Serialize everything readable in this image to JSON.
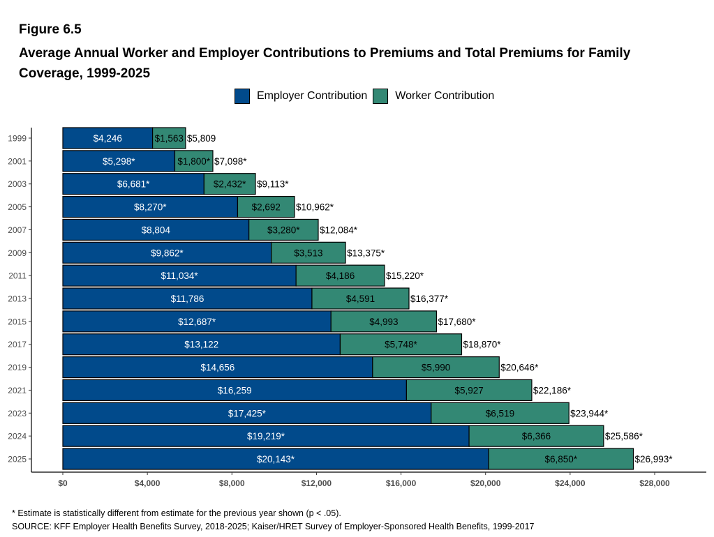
{
  "figure_label": "Figure 6.5",
  "chart_data": {
    "type": "bar",
    "orientation": "horizontal",
    "stacked": true,
    "title": "Average Annual Worker and Employer Contributions to Premiums and Total Premiums for Family Coverage, 1999-2025",
    "categories": [
      "1999",
      "2001",
      "2003",
      "2005",
      "2007",
      "2009",
      "2011",
      "2013",
      "2015",
      "2017",
      "2019",
      "2021",
      "2023",
      "2024",
      "2025"
    ],
    "series": [
      {
        "name": "Employer Contribution",
        "color": "#014A8B",
        "values": [
          4246,
          5298,
          6681,
          8270,
          8804,
          9862,
          11034,
          11786,
          12687,
          13122,
          14656,
          16259,
          17425,
          19219,
          20143
        ],
        "labels": [
          "$4,246",
          "$5,298*",
          "$6,681*",
          "$8,270*",
          "$8,804",
          "$9,862*",
          "$11,034*",
          "$11,786",
          "$12,687*",
          "$13,122",
          "$14,656",
          "$16,259",
          "$17,425*",
          "$19,219*",
          "$20,143*"
        ]
      },
      {
        "name": "Worker Contribution",
        "color": "#338874",
        "values": [
          1563,
          1800,
          2432,
          2692,
          3280,
          3513,
          4186,
          4591,
          4993,
          5748,
          5990,
          5927,
          6519,
          6366,
          6850
        ],
        "labels": [
          "$1,563",
          "$1,800*",
          "$2,432*",
          "$2,692",
          "$3,280*",
          "$3,513",
          "$4,186",
          "$4,591",
          "$4,993",
          "$5,748*",
          "$5,990",
          "$5,927",
          "$6,519",
          "$6,366",
          "$6,850*"
        ]
      }
    ],
    "totals": {
      "values": [
        5809,
        7098,
        9113,
        10962,
        12084,
        13375,
        15220,
        16377,
        17680,
        18870,
        20646,
        22186,
        23944,
        25586,
        26993
      ],
      "labels": [
        "$5,809",
        "$7,098*",
        "$9,113*",
        "$10,962*",
        "$12,084*",
        "$13,375*",
        "$15,220*",
        "$16,377*",
        "$17,680*",
        "$18,870*",
        "$20,646*",
        "$22,186*",
        "$23,944*",
        "$25,586*",
        "$26,993*"
      ]
    },
    "xlim": [
      0,
      30000
    ],
    "xticks": [
      0,
      4000,
      8000,
      12000,
      16000,
      20000,
      24000,
      28000
    ],
    "xtick_labels": [
      "$0",
      "$4,000",
      "$8,000",
      "$12,000",
      "$16,000",
      "$20,000",
      "$24,000",
      "$28,000"
    ],
    "grid": false,
    "legend_position": "top"
  },
  "footnote": "* Estimate is statistically different from estimate for the previous year shown (p < .05).",
  "source": "SOURCE: KFF Employer Health Benefits Survey, 2018-2025; Kaiser/HRET Survey of Employer-Sponsored Health Benefits, 1999-2017"
}
